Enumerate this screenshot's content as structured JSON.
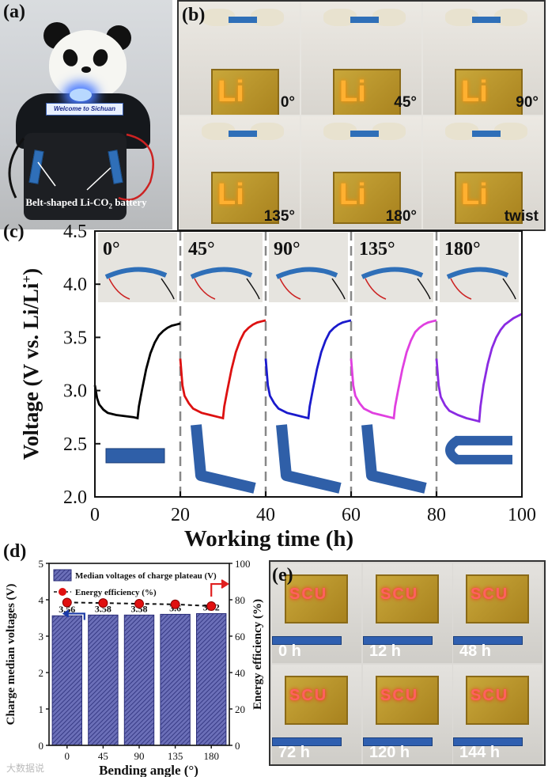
{
  "panels": {
    "a": {
      "label": "(a)",
      "banner": "Welcome to Sichuan",
      "caption_prefix": "Belt-shaped Li-CO",
      "caption_sub": "2",
      "caption_suffix": " battery"
    },
    "b": {
      "label": "(b)",
      "board_text": "Li",
      "angles": [
        "0°",
        "45°",
        "90°",
        "135°",
        "180°",
        "twist"
      ]
    },
    "c": {
      "label": "(c)",
      "inset_angles": [
        "0°",
        "45°",
        "90°",
        "135°",
        "180°"
      ]
    },
    "d": {
      "label": "(d)"
    },
    "e": {
      "label": "(e)",
      "board_text": "SCU",
      "times": [
        "0 h",
        "12 h",
        "48 h",
        "72 h",
        "120 h",
        "144 h"
      ]
    }
  },
  "watermark": "大数据说",
  "chart_data": [
    {
      "panel": "c",
      "type": "line",
      "xlabel": "Working time (h)",
      "ylabel": "Voltage (V vs. Li/Li+)",
      "xlim": [
        0,
        100
      ],
      "ylim": [
        2.0,
        4.5
      ],
      "xticks": [
        "0",
        "20",
        "40",
        "60",
        "80",
        "100"
      ],
      "yticks": [
        "2.0",
        "2.5",
        "3.0",
        "3.5",
        "4.0",
        "4.5"
      ],
      "bend_markers_x": [
        20,
        40,
        60,
        80
      ],
      "series": [
        {
          "color": "#000000",
          "x": [
            0,
            0.5,
            1,
            2,
            3,
            5,
            7,
            9,
            10,
            10.3,
            11,
            12,
            13,
            14,
            15,
            16,
            17,
            18,
            19,
            20
          ],
          "y": [
            3.05,
            2.93,
            2.87,
            2.82,
            2.79,
            2.77,
            2.76,
            2.75,
            2.74,
            2.85,
            3.0,
            3.2,
            3.35,
            3.45,
            3.52,
            3.56,
            3.59,
            3.61,
            3.62,
            3.63
          ]
        },
        {
          "color": "#dd1111",
          "x": [
            20,
            20.5,
            21,
            22,
            23,
            25,
            27,
            29,
            30,
            30.3,
            31,
            32,
            33,
            34,
            35,
            36,
            37,
            38,
            39,
            40
          ],
          "y": [
            3.3,
            3.05,
            2.95,
            2.88,
            2.83,
            2.79,
            2.77,
            2.75,
            2.74,
            2.85,
            3.0,
            3.2,
            3.36,
            3.47,
            3.55,
            3.59,
            3.62,
            3.64,
            3.65,
            3.66
          ]
        },
        {
          "color": "#1a1acc",
          "x": [
            40,
            40.5,
            41,
            42,
            43,
            45,
            47,
            49,
            50,
            50.3,
            51,
            52,
            53,
            54,
            55,
            56,
            57,
            58,
            59,
            60
          ],
          "y": [
            3.3,
            3.05,
            2.95,
            2.88,
            2.83,
            2.79,
            2.77,
            2.75,
            2.74,
            2.85,
            3.0,
            3.2,
            3.36,
            3.47,
            3.55,
            3.59,
            3.62,
            3.64,
            3.65,
            3.66
          ]
        },
        {
          "color": "#e040e0",
          "x": [
            60,
            60.5,
            61,
            62,
            63,
            65,
            67,
            69,
            70,
            70.3,
            71,
            72,
            73,
            74,
            75,
            76,
            77,
            78,
            79,
            80
          ],
          "y": [
            3.3,
            3.05,
            2.95,
            2.88,
            2.83,
            2.79,
            2.77,
            2.75,
            2.74,
            2.85,
            3.0,
            3.2,
            3.36,
            3.47,
            3.55,
            3.59,
            3.62,
            3.64,
            3.65,
            3.66
          ]
        },
        {
          "color": "#8a2be2",
          "x": [
            80,
            80.5,
            81,
            82,
            83,
            85,
            87,
            89,
            90,
            90.3,
            91,
            92,
            93,
            94,
            95,
            96,
            97,
            98,
            99,
            100
          ],
          "y": [
            3.3,
            3.05,
            2.94,
            2.86,
            2.81,
            2.77,
            2.74,
            2.72,
            2.71,
            2.85,
            3.05,
            3.25,
            3.4,
            3.5,
            3.57,
            3.62,
            3.65,
            3.68,
            3.7,
            3.72
          ]
        }
      ]
    },
    {
      "panel": "d",
      "type": "bar",
      "xlabel": "Bending angle (°)",
      "ylabel": "Charge median voltages (V)",
      "y2label": "Energy efficiency (%)",
      "categories": [
        "0",
        "45",
        "90",
        "135",
        "180"
      ],
      "ylim": [
        0,
        5
      ],
      "y2lim": [
        0,
        100
      ],
      "yticks": [
        "0",
        "1",
        "2",
        "3",
        "4",
        "5"
      ],
      "y2ticks": [
        "0",
        "20",
        "40",
        "60",
        "80",
        "100"
      ],
      "legend": [
        "Median voltages of charge plateau (V)",
        "Energy efficiency (%)"
      ],
      "legend_position": "top-left",
      "series": [
        {
          "name": "Median voltages of charge plateau (V)",
          "axis": "left",
          "values": [
            3.56,
            3.58,
            3.58,
            3.6,
            3.62
          ],
          "value_labels": [
            "3.56",
            "3.58",
            "3.58",
            "3.6",
            "3.62"
          ],
          "color": "#5a5fa8"
        },
        {
          "name": "Energy efficiency (%)",
          "axis": "right",
          "values": [
            78.5,
            78.2,
            77.8,
            77.5,
            76.5
          ],
          "color": "#e01010"
        }
      ]
    }
  ]
}
